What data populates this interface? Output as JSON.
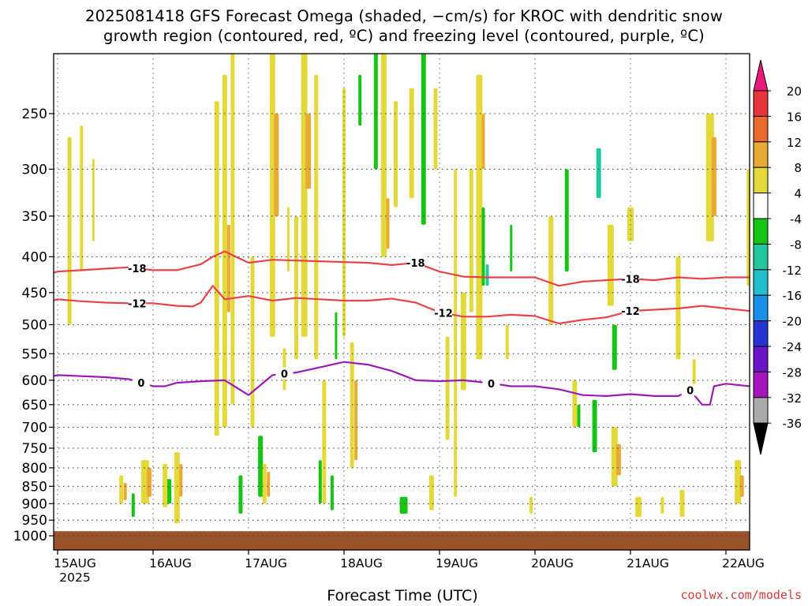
{
  "title_lines": [
    "2025081418 GFS Forecast Omega (shaded, −cm/s) for KROC with dendritic snow",
    "growth region (contoured, red, ºC) and freezing level (contoured, purple, ºC)"
  ],
  "credit": "coolwx.com/models",
  "chart_data": {
    "type": "heatmap",
    "title": "2025081418 GFS Forecast Omega (shaded, −cm/s) for KROC with dendritic snow growth region (contoured, red, ºC) and freezing level (contoured, purple, ºC)",
    "xlabel": "Forecast Time (UTC)",
    "ylabel": "",
    "x_tick_labels": [
      "15AUG",
      "16AUG",
      "17AUG",
      "18AUG",
      "19AUG",
      "20AUG",
      "21AUG",
      "22AUG"
    ],
    "x_tick_sublabel": "2025",
    "xlim_hours": [
      0,
      180
    ],
    "x_start": "2025-08-14 18Z",
    "y_tick_labels": [
      "250",
      "300",
      "350",
      "400",
      "450",
      "500",
      "550",
      "600",
      "650",
      "700",
      "750",
      "800",
      "850",
      "900",
      "950",
      "1000"
    ],
    "y_scale": "log",
    "ylim": [
      1025,
      200
    ],
    "grid": true,
    "colorbar": {
      "labels": [
        "20",
        "16",
        "12",
        "8",
        "4",
        "-4",
        "-8",
        "-12",
        "-16",
        "-20",
        "-24",
        "-28",
        "-32",
        "-36"
      ],
      "colors": [
        "#e8197a",
        "#e8353c",
        "#e86a2c",
        "#e8a935",
        "#e3d93b",
        "#ffffff",
        "#16c416",
        "#23c89e",
        "#22bfcf",
        "#1a90e8",
        "#2433d2",
        "#6a14c8",
        "#a415c0",
        "#aaaaaa",
        "#000000"
      ]
    },
    "contours": [
      {
        "label": "-18",
        "color": "#e8434a",
        "x": [
          0,
          6,
          12,
          18,
          24,
          30,
          36,
          42,
          45,
          48,
          54,
          60,
          66,
          72,
          78,
          84,
          90,
          96,
          102,
          108,
          114,
          120,
          126,
          132,
          138,
          144,
          150,
          156,
          162,
          168,
          174,
          180
        ],
        "y": [
          430,
          420,
          418,
          416,
          414,
          418,
          418,
          410,
          400,
          393,
          408,
          404,
          405,
          406,
          407,
          408,
          411,
          408,
          420,
          427,
          428,
          428,
          428,
          440,
          434,
          432,
          430,
          432,
          428,
          430,
          428,
          428
        ]
      },
      {
        "label": "-12",
        "color": "#e8434a",
        "x": [
          0,
          6,
          12,
          18,
          24,
          30,
          36,
          40,
          42,
          45,
          48,
          54,
          60,
          66,
          72,
          78,
          84,
          90,
          96,
          102,
          108,
          114,
          120,
          126,
          132,
          138,
          144,
          150,
          156,
          162,
          168,
          174,
          180
        ],
        "y": [
          470,
          460,
          463,
          465,
          466,
          466,
          470,
          471,
          465,
          440,
          460,
          455,
          462,
          458,
          460,
          462,
          462,
          459,
          465,
          480,
          487,
          487,
          484,
          486,
          498,
          492,
          488,
          478,
          476,
          474,
          470,
          474,
          478
        ]
      },
      {
        "label": "0",
        "color": "#9a1ab4",
        "x": [
          0,
          6,
          12,
          18,
          24,
          30,
          33,
          36,
          42,
          48,
          54,
          60,
          66,
          72,
          78,
          84,
          90,
          96,
          102,
          108,
          114,
          120,
          126,
          132,
          138,
          144,
          150,
          156,
          162,
          165,
          168,
          170,
          171,
          174,
          180
        ],
        "y": [
          600,
          590,
          592,
          594,
          598,
          612,
          612,
          605,
          602,
          600,
          630,
          590,
          585,
          575,
          565,
          570,
          582,
          600,
          602,
          600,
          605,
          612,
          612,
          618,
          630,
          632,
          628,
          632,
          632,
          620,
          650,
          650,
          612,
          607,
          612
        ]
      }
    ]
  }
}
